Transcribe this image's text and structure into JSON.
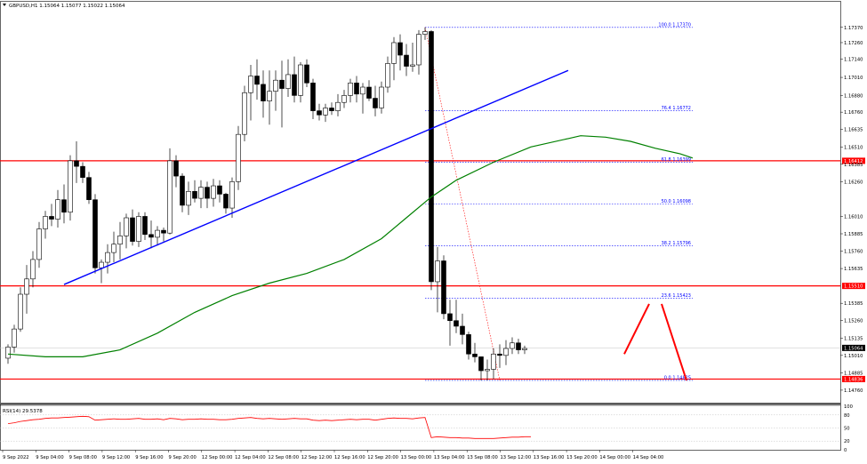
{
  "header": {
    "title": "GBPUSD,H1  1.15064 1.15077 1.15022 1.15064",
    "icon": "triangle-down-icon"
  },
  "colors": {
    "bull_body": "#ffffff",
    "bear_body": "#000000",
    "trendline": "#0000ff",
    "ma": "#008000",
    "hline": "#ff0000",
    "rsi": "#ff0000",
    "fib": "#0000ff",
    "fib_trend": "#ff0000",
    "arrows": "#ff0000",
    "price_tag_dark": "#000000"
  },
  "chart_data": [
    {
      "type": "candlestick",
      "symbol": "GBPUSD",
      "timeframe": "H1",
      "ylim": [
        1.1467,
        1.1749
      ],
      "yticks": [
        "1.17370",
        "1.17260",
        "1.17140",
        "1.17010",
        "1.16880",
        "1.16760",
        "1.16635",
        "1.16510",
        "1.16385",
        "1.16260",
        "1.16010",
        "1.15885",
        "1.15760",
        "1.15635",
        "1.15385",
        "1.15260",
        "1.15135",
        "1.15010",
        "1.14885",
        "1.14760"
      ],
      "xticks": [
        "9 Sep 2022",
        "9 Sep 04:00",
        "9 Sep 08:00",
        "9 Sep 12:00",
        "9 Sep 16:00",
        "9 Sep 20:00",
        "12 Sep 00:00",
        "12 Sep 04:00",
        "12 Sep 08:00",
        "12 Sep 12:00",
        "12 Sep 16:00",
        "12 Sep 20:00",
        "13 Sep 00:00",
        "13 Sep 04:00",
        "13 Sep 08:00",
        "13 Sep 12:00",
        "13 Sep 16:00",
        "13 Sep 20:00",
        "14 Sep 00:00",
        "14 Sep 04:00"
      ],
      "candles": [
        [
          1.1499,
          1.1509,
          1.1495,
          1.1507
        ],
        [
          1.1507,
          1.1523,
          1.1503,
          1.152
        ],
        [
          1.152,
          1.155,
          1.1518,
          1.1545
        ],
        [
          1.1545,
          1.1566,
          1.1531,
          1.1556
        ],
        [
          1.1556,
          1.1576,
          1.155,
          1.157
        ],
        [
          1.157,
          1.1597,
          1.1564,
          1.1592
        ],
        [
          1.1592,
          1.1605,
          1.1585,
          1.1601
        ],
        [
          1.1601,
          1.161,
          1.1594,
          1.1599
        ],
        [
          1.1599,
          1.162,
          1.1593,
          1.1613
        ],
        [
          1.1613,
          1.1624,
          1.1596,
          1.1604
        ],
        [
          1.1604,
          1.1645,
          1.1598,
          1.1641
        ],
        [
          1.1641,
          1.1655,
          1.1625,
          1.1637
        ],
        [
          1.1637,
          1.164,
          1.1625,
          1.1629
        ],
        [
          1.1629,
          1.1633,
          1.161,
          1.1613
        ],
        [
          1.1613,
          1.1617,
          1.156,
          1.1564
        ],
        [
          1.1564,
          1.157,
          1.1553,
          1.1568
        ],
        [
          1.1568,
          1.1581,
          1.156,
          1.1575
        ],
        [
          1.1575,
          1.159,
          1.1568,
          1.1581
        ],
        [
          1.1581,
          1.1597,
          1.157,
          1.1587
        ],
        [
          1.1587,
          1.1603,
          1.1578,
          1.16
        ],
        [
          1.16,
          1.1606,
          1.158,
          1.1583
        ],
        [
          1.1583,
          1.1604,
          1.1579,
          1.1601
        ],
        [
          1.1601,
          1.1604,
          1.1584,
          1.1588
        ],
        [
          1.1588,
          1.1598,
          1.1578,
          1.1586
        ],
        [
          1.1586,
          1.1594,
          1.158,
          1.1591
        ],
        [
          1.1591,
          1.1593,
          1.1583,
          1.1589
        ],
        [
          1.1589,
          1.165,
          1.1588,
          1.1641
        ],
        [
          1.1641,
          1.1645,
          1.1622,
          1.163
        ],
        [
          1.163,
          1.1632,
          1.1604,
          1.1609
        ],
        [
          1.1609,
          1.1626,
          1.1602,
          1.1619
        ],
        [
          1.1619,
          1.1627,
          1.1611,
          1.1614
        ],
        [
          1.1614,
          1.1627,
          1.1607,
          1.1622
        ],
        [
          1.1622,
          1.1626,
          1.1607,
          1.1614
        ],
        [
          1.1614,
          1.1628,
          1.1608,
          1.1623
        ],
        [
          1.1623,
          1.1627,
          1.1611,
          1.1617
        ],
        [
          1.1617,
          1.1618,
          1.1603,
          1.1607
        ],
        [
          1.1607,
          1.1629,
          1.16,
          1.1626
        ],
        [
          1.1626,
          1.1666,
          1.162,
          1.166
        ],
        [
          1.166,
          1.1695,
          1.1655,
          1.169
        ],
        [
          1.169,
          1.171,
          1.167,
          1.1702
        ],
        [
          1.1702,
          1.1714,
          1.1685,
          1.1696
        ],
        [
          1.1696,
          1.1706,
          1.1672,
          1.1684
        ],
        [
          1.1684,
          1.1706,
          1.1667,
          1.1691
        ],
        [
          1.1691,
          1.1706,
          1.1677,
          1.1699
        ],
        [
          1.1699,
          1.1713,
          1.1665,
          1.1693
        ],
        [
          1.1693,
          1.1714,
          1.1687,
          1.1703
        ],
        [
          1.1703,
          1.1716,
          1.1683,
          1.1688
        ],
        [
          1.1688,
          1.1712,
          1.1683,
          1.171
        ],
        [
          1.171,
          1.1714,
          1.1694,
          1.1697
        ],
        [
          1.1697,
          1.17,
          1.1671,
          1.1677
        ],
        [
          1.1677,
          1.1682,
          1.167,
          1.1674
        ],
        [
          1.1674,
          1.1682,
          1.1669,
          1.1679
        ],
        [
          1.1679,
          1.1683,
          1.1674,
          1.1677
        ],
        [
          1.1677,
          1.1689,
          1.1673,
          1.1683
        ],
        [
          1.1683,
          1.1692,
          1.1679,
          1.1688
        ],
        [
          1.1688,
          1.17,
          1.1683,
          1.1697
        ],
        [
          1.1697,
          1.1702,
          1.1683,
          1.1689
        ],
        [
          1.1689,
          1.1697,
          1.1675,
          1.1694
        ],
        [
          1.1694,
          1.1699,
          1.1684,
          1.1686
        ],
        [
          1.1686,
          1.1695,
          1.1673,
          1.1679
        ],
        [
          1.1679,
          1.1698,
          1.1675,
          1.1694
        ],
        [
          1.1694,
          1.1716,
          1.169,
          1.1711
        ],
        [
          1.1711,
          1.173,
          1.1699,
          1.1726
        ],
        [
          1.1726,
          1.1732,
          1.1706,
          1.1717
        ],
        [
          1.1717,
          1.1725,
          1.1702,
          1.1709
        ],
        [
          1.1709,
          1.1726,
          1.1705,
          1.171
        ],
        [
          1.171,
          1.1735,
          1.1703,
          1.1732
        ],
        [
          1.1732,
          1.1737,
          1.1728,
          1.1734
        ],
        [
          1.1734,
          1.1735,
          1.1548,
          1.1554
        ],
        [
          1.1554,
          1.1579,
          1.1532,
          1.1569
        ],
        [
          1.1569,
          1.1573,
          1.1527,
          1.1531
        ],
        [
          1.1531,
          1.1541,
          1.1508,
          1.1526
        ],
        [
          1.1526,
          1.1541,
          1.1517,
          1.1522
        ],
        [
          1.1522,
          1.1531,
          1.1509,
          1.1516
        ],
        [
          1.1516,
          1.1518,
          1.1498,
          1.1502
        ],
        [
          1.1502,
          1.151,
          1.1496,
          1.15
        ],
        [
          1.15,
          1.15,
          1.1483,
          1.149
        ],
        [
          1.149,
          1.1498,
          1.1483,
          1.1491
        ],
        [
          1.1491,
          1.1506,
          1.1484,
          1.1502
        ],
        [
          1.1502,
          1.1509,
          1.1492,
          1.1501
        ],
        [
          1.1501,
          1.1512,
          1.1494,
          1.1506
        ],
        [
          1.1506,
          1.1514,
          1.1502,
          1.151
        ],
        [
          1.151,
          1.1513,
          1.1502,
          1.1505
        ],
        [
          1.1505,
          1.1508,
          1.1502,
          1.1506
        ]
      ],
      "moving_average": [
        [
          0,
          1.1502
        ],
        [
          6,
          1.15
        ],
        [
          12,
          1.15
        ],
        [
          18,
          1.1505
        ],
        [
          24,
          1.1517
        ],
        [
          30,
          1.1532
        ],
        [
          36,
          1.1544
        ],
        [
          42,
          1.1553
        ],
        [
          48,
          1.156
        ],
        [
          54,
          1.157
        ],
        [
          60,
          1.1585
        ],
        [
          64,
          1.16
        ],
        [
          68,
          1.1615
        ],
        [
          72,
          1.1627
        ],
        [
          78,
          1.164
        ],
        [
          84,
          1.1651
        ],
        [
          90,
          1.1657
        ],
        [
          92,
          1.1659
        ],
        [
          96,
          1.1658
        ],
        [
          100,
          1.1655
        ],
        [
          104,
          1.165
        ],
        [
          108,
          1.1646
        ],
        [
          110,
          1.1643
        ]
      ],
      "trendline": [
        [
          9,
          1.1552
        ],
        [
          90,
          1.1706
        ]
      ],
      "horizontal_lines": [
        1.1641,
        1.1551,
        1.1484
      ],
      "horizontal_line_labels": [
        "1.16412",
        "1.15510",
        "1.14836"
      ],
      "current_price": 1.15064,
      "current_price_label": "1.15064",
      "fibonacci": {
        "from_index": 67,
        "to_index": 79,
        "end_index": 110,
        "levels": [
          {
            "label": "100.0",
            "price": 1.1737,
            "text": "1.17370"
          },
          {
            "label": "76.4",
            "price": 1.1677,
            "text": "1.16772"
          },
          {
            "label": "61.8",
            "price": 1.164,
            "text": "1.16399"
          },
          {
            "label": "50.0",
            "price": 1.161,
            "text": "1.16098"
          },
          {
            "label": "38.2",
            "price": 1.158,
            "text": "1.15796"
          },
          {
            "label": "23.6",
            "price": 1.1542,
            "text": "1.15423"
          },
          {
            "label": "0.0",
            "price": 1.1483,
            "text": "1.14825"
          }
        ]
      },
      "annotation_arrows": [
        [
          [
            99,
            1.1502
          ],
          [
            103,
            1.1538
          ]
        ],
        [
          [
            105,
            1.1538
          ],
          [
            109,
            1.1483
          ]
        ]
      ]
    },
    {
      "type": "line",
      "title": "RSI(14) 29.5378",
      "ylim": [
        0,
        100
      ],
      "yticks": [
        "100",
        "80",
        "50",
        "20",
        "0"
      ],
      "levels": [
        80,
        50,
        20
      ],
      "series": [
        {
          "values": [
            60,
            62,
            65,
            67,
            69,
            70,
            72,
            73,
            73,
            74,
            75,
            76,
            77,
            76,
            68,
            69,
            70,
            71,
            70,
            70,
            71,
            72,
            70,
            70,
            71,
            69,
            72,
            71,
            69,
            70,
            70,
            71,
            70,
            70,
            69,
            69,
            70,
            72,
            73,
            74,
            72,
            71,
            72,
            71,
            70,
            71,
            72,
            71,
            71,
            68,
            67,
            68,
            67,
            68,
            69,
            70,
            69,
            70,
            70,
            68,
            70,
            72,
            73,
            72,
            72,
            71,
            73,
            74,
            28,
            30,
            29,
            28,
            28,
            27,
            27,
            26,
            26,
            26,
            26,
            27,
            28,
            29,
            29,
            30,
            30
          ]
        }
      ]
    }
  ]
}
